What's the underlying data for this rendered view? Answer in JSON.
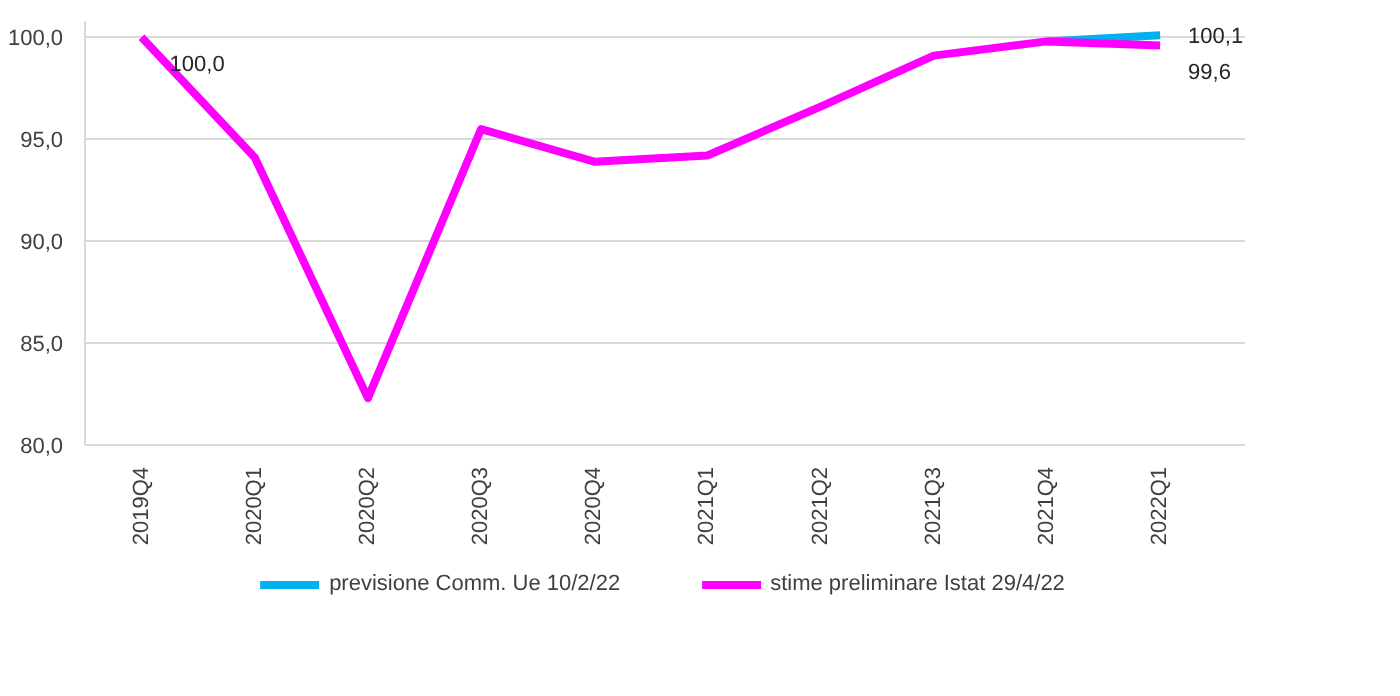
{
  "chart_data": {
    "type": "line",
    "categories": [
      "2019Q4",
      "2020Q1",
      "2020Q2",
      "2020Q3",
      "2020Q4",
      "2021Q1",
      "2021Q2",
      "2021Q3",
      "2021Q4",
      "2022Q1"
    ],
    "series": [
      {
        "name": "previsione Comm. Ue 10/2/22",
        "color": "#00b0f0",
        "values": [
          null,
          null,
          null,
          null,
          null,
          null,
          null,
          null,
          99.8,
          100.1
        ],
        "value_labels": [
          null,
          null,
          null,
          null,
          null,
          null,
          null,
          null,
          null,
          "100,1"
        ]
      },
      {
        "name": "stime preliminare Istat 29/4/22",
        "color": "#ff00ff",
        "values": [
          100.0,
          94.1,
          82.3,
          95.5,
          93.9,
          94.2,
          96.6,
          99.1,
          99.8,
          99.6
        ],
        "value_labels": [
          "100,0",
          null,
          null,
          null,
          null,
          null,
          null,
          null,
          null,
          "99,6"
        ]
      }
    ],
    "ylim": [
      80,
      100.8
    ],
    "yticks": [
      {
        "value": 80,
        "label": "80,0"
      },
      {
        "value": 85,
        "label": "85,0"
      },
      {
        "value": 90,
        "label": "90,0"
      },
      {
        "value": 95,
        "label": "95,0"
      },
      {
        "value": 100,
        "label": "100,0"
      }
    ],
    "grid": "y",
    "legend": "bottom",
    "marker": "none",
    "line_style": "solid"
  }
}
